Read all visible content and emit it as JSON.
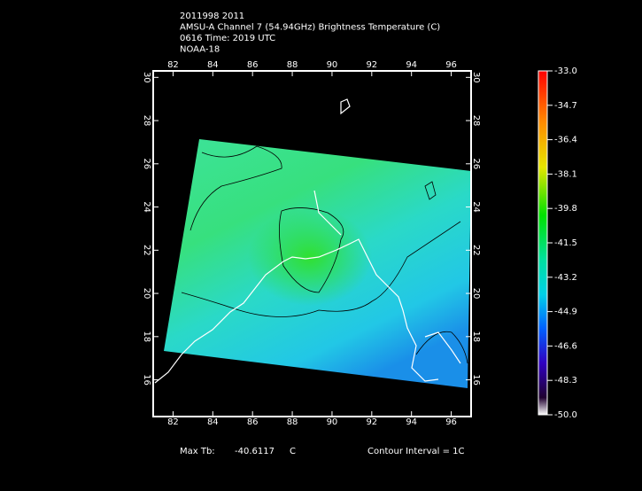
{
  "header": {
    "lines": [
      "2011998 2011",
      "AMSU-A Channel 7 (54.94GHz) Brightness Temperature (C)",
      "0616 Time: 2019 UTC",
      "NOAA-18"
    ]
  },
  "map": {
    "xlim": [
      81,
      97
    ],
    "ylim": [
      14.3,
      30.3
    ],
    "xticks": [
      82,
      84,
      86,
      88,
      90,
      92,
      94,
      96
    ],
    "yticks": [
      16,
      18,
      20,
      22,
      24,
      26,
      28,
      30
    ]
  },
  "colorbar": {
    "ticks": [
      {
        "value": -33,
        "label": "-33.0"
      },
      {
        "value": -34.7,
        "label": "-34.7"
      },
      {
        "value": -36.4,
        "label": "-36.4"
      },
      {
        "value": -38.1,
        "label": "-38.1"
      },
      {
        "value": -39.8,
        "label": "-39.8"
      },
      {
        "value": -41.5,
        "label": "-41.5"
      },
      {
        "value": -43.2,
        "label": "-43.2"
      },
      {
        "value": -44.9,
        "label": "-44.9"
      },
      {
        "value": -46.6,
        "label": "-46.6"
      },
      {
        "value": -48.3,
        "label": "-48.3"
      },
      {
        "value": -50,
        "label": "-50.0"
      }
    ]
  },
  "footer": {
    "max_label": "Max Tb:",
    "max_value": {
      "value": -40.6117,
      "label": "-40.6117"
    },
    "max_unit": "C",
    "contour": "Contour Interval = 1C"
  }
}
